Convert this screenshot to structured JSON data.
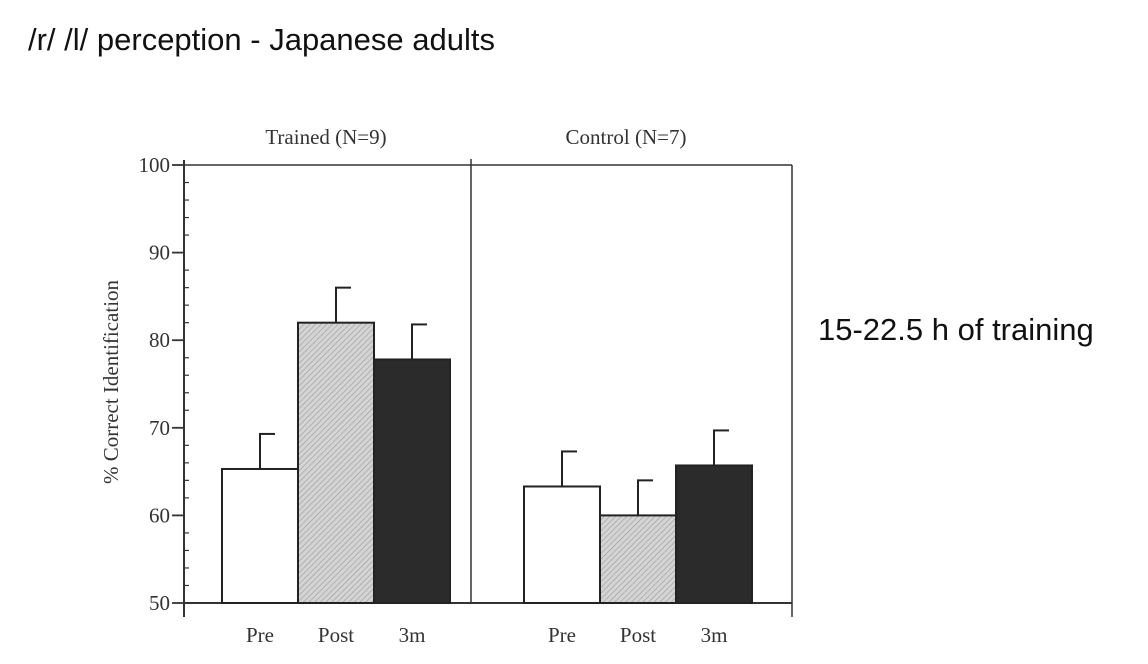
{
  "slide": {
    "title": "/r/ /l/ perception - Japanese adults",
    "note": "15-22.5 h of training"
  },
  "chart_data": {
    "type": "bar",
    "ylabel": "% Correct Identification",
    "ylim": [
      50,
      100
    ],
    "yticks": [
      50,
      60,
      70,
      80,
      90,
      100
    ],
    "panels": [
      {
        "title": "Trained (N=9)",
        "categories": [
          "Pre",
          "Post",
          "3m"
        ],
        "values": [
          65.3,
          82.0,
          77.8
        ],
        "errors": [
          4.0,
          4.0,
          4.0
        ]
      },
      {
        "title": "Control (N=7)",
        "categories": [
          "Pre",
          "Post",
          "3m"
        ],
        "values": [
          63.3,
          60.0,
          65.7
        ],
        "errors": [
          4.0,
          4.0,
          4.0
        ]
      }
    ],
    "category_fills": [
      "white",
      "hatched-light-gray",
      "dark"
    ],
    "colors": {
      "pre": "#ffffff",
      "post": "#cfcfcf",
      "three_month": "#2b2b2b",
      "axis": "#333333"
    }
  }
}
